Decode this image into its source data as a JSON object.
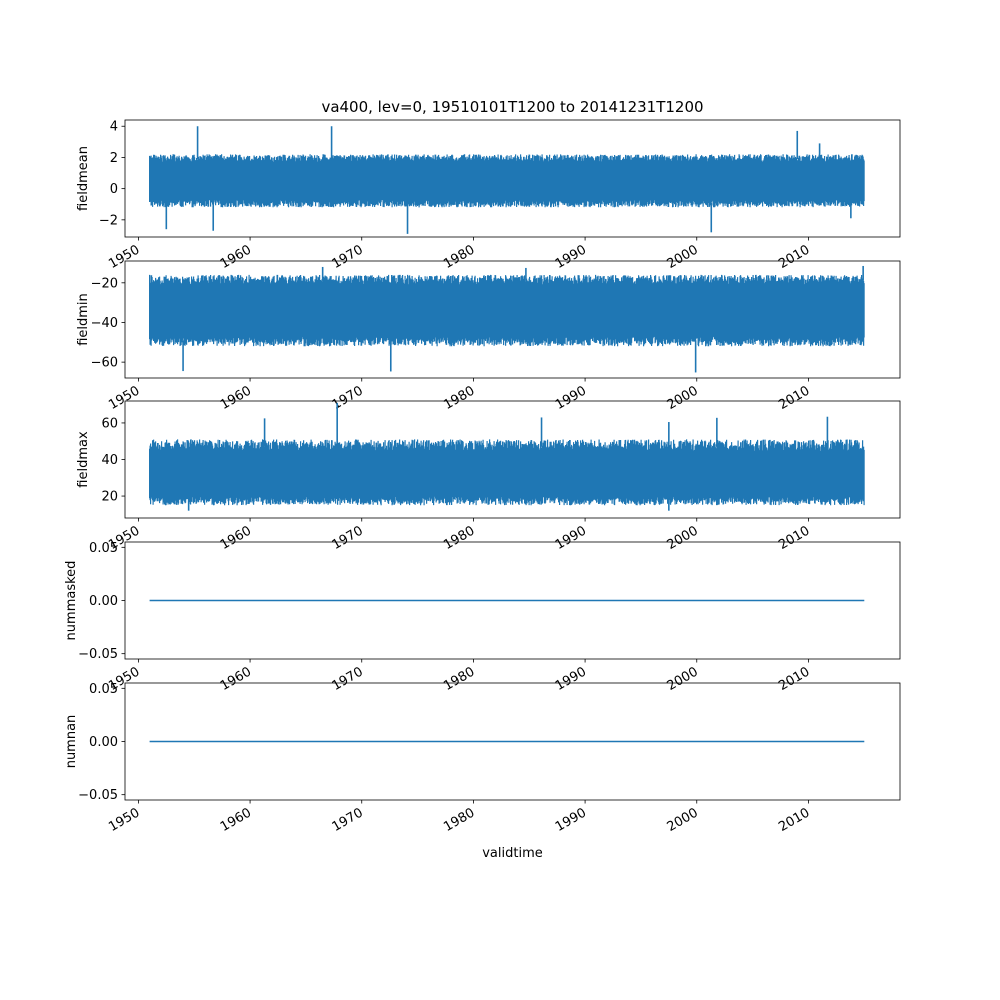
{
  "chart_data": [
    {
      "type": "line",
      "title": "va400, lev=0, 19510101T1200 to 20141231T1200",
      "xlabel": "",
      "ylabel": "fieldmean",
      "xlim": [
        1948.8,
        2018.2
      ],
      "ylim": [
        -3.1,
        4.4
      ],
      "x_ticks": [
        1950,
        1960,
        1970,
        1980,
        1990,
        2000,
        2010
      ],
      "y_ticks": [
        -2,
        0,
        2,
        4
      ],
      "y_tick_labels": [
        "−2",
        "0",
        "2",
        "4"
      ],
      "x_range": [
        1951.0,
        2015.0
      ],
      "band": {
        "low": -1.2,
        "high": 2.2,
        "typical_low": -0.9,
        "typical_high": 1.9
      },
      "extremes": [
        {
          "x": 1952.5,
          "y": -2.6
        },
        {
          "x": 1955.3,
          "y": 4.0
        },
        {
          "x": 1956.7,
          "y": -2.7
        },
        {
          "x": 1967.3,
          "y": 4.0
        },
        {
          "x": 1974.1,
          "y": -2.9
        },
        {
          "x": 2001.3,
          "y": -2.8
        },
        {
          "x": 2009.0,
          "y": 3.7
        },
        {
          "x": 2011.0,
          "y": 2.9
        },
        {
          "x": 2013.8,
          "y": -1.9
        }
      ],
      "grid": false,
      "color": "#1f77b4"
    },
    {
      "type": "line",
      "title": "",
      "xlabel": "",
      "ylabel": "fieldmin",
      "xlim": [
        1948.8,
        2018.2
      ],
      "ylim": [
        -68,
        -9
      ],
      "x_ticks": [
        1950,
        1960,
        1970,
        1980,
        1990,
        2000,
        2010
      ],
      "y_ticks": [
        -60,
        -40,
        -20
      ],
      "y_tick_labels": [
        "−60",
        "−40",
        "−20"
      ],
      "x_range": [
        1951.0,
        2015.0
      ],
      "band": {
        "low": -52,
        "high": -16,
        "typical_low": -49,
        "typical_high": -19
      },
      "extremes": [
        {
          "x": 1954.0,
          "y": -64.5
        },
        {
          "x": 1972.6,
          "y": -64.7
        },
        {
          "x": 1999.9,
          "y": -65.2
        },
        {
          "x": 1984.7,
          "y": -12.5
        },
        {
          "x": 2014.9,
          "y": -11.5
        },
        {
          "x": 1966.5,
          "y": -12.0
        }
      ],
      "grid": false,
      "color": "#1f77b4"
    },
    {
      "type": "line",
      "title": "",
      "xlabel": "",
      "ylabel": "fieldmax",
      "xlim": [
        1948.8,
        2018.2
      ],
      "ylim": [
        8,
        72
      ],
      "x_ticks": [
        1950,
        1960,
        1970,
        1980,
        1990,
        2000,
        2010
      ],
      "y_ticks": [
        20,
        40,
        60
      ],
      "y_tick_labels": [
        "20",
        "40",
        "60"
      ],
      "x_range": [
        1951.0,
        2015.0
      ],
      "band": {
        "low": 15,
        "high": 51,
        "typical_low": 18,
        "typical_high": 47
      },
      "extremes": [
        {
          "x": 1967.8,
          "y": 71.0
        },
        {
          "x": 1961.3,
          "y": 62.5
        },
        {
          "x": 1986.1,
          "y": 63.0
        },
        {
          "x": 1997.5,
          "y": 60.5
        },
        {
          "x": 2001.8,
          "y": 62.8
        },
        {
          "x": 2011.7,
          "y": 63.4
        },
        {
          "x": 1954.5,
          "y": 12.0
        },
        {
          "x": 1997.5,
          "y": 12.0
        }
      ],
      "grid": false,
      "color": "#1f77b4"
    },
    {
      "type": "line",
      "title": "",
      "xlabel": "",
      "ylabel": "nummasked",
      "xlim": [
        1948.8,
        2018.2
      ],
      "ylim": [
        -0.055,
        0.055
      ],
      "x_ticks": [
        1950,
        1960,
        1970,
        1980,
        1990,
        2000,
        2010
      ],
      "y_ticks": [
        -0.05,
        0.0,
        0.05
      ],
      "y_tick_labels": [
        "−0.05",
        "0.00",
        "0.05"
      ],
      "x_range": [
        1951.0,
        2015.0
      ],
      "x": [
        1951.0,
        2015.0
      ],
      "y": [
        0.0,
        0.0
      ],
      "grid": false,
      "color": "#1f77b4"
    },
    {
      "type": "line",
      "title": "",
      "xlabel": "validtime",
      "ylabel": "numnan",
      "xlim": [
        1948.8,
        2018.2
      ],
      "ylim": [
        -0.055,
        0.055
      ],
      "x_ticks": [
        1950,
        1960,
        1970,
        1980,
        1990,
        2000,
        2010
      ],
      "y_ticks": [
        -0.05,
        0.0,
        0.05
      ],
      "y_tick_labels": [
        "−0.05",
        "0.00",
        "0.05"
      ],
      "x_range": [
        1951.0,
        2015.0
      ],
      "x": [
        1951.0,
        2015.0
      ],
      "y": [
        0.0,
        0.0
      ],
      "grid": false,
      "color": "#1f77b4"
    }
  ]
}
